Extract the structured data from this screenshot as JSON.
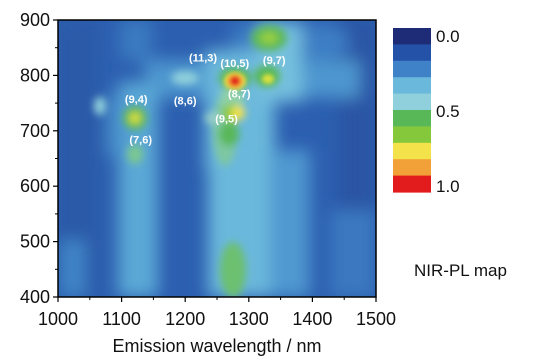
{
  "chart_data": {
    "type": "heatmap",
    "title": "",
    "xlabel": "Emission wavelength / nm",
    "ylabel": "",
    "xlim": [
      1000,
      1500
    ],
    "ylim": [
      400,
      900
    ],
    "x_ticks": [
      "1000",
      "1100",
      "1200",
      "1300",
      "1400",
      "1500"
    ],
    "y_ticks": [
      "400",
      "500",
      "600",
      "700",
      "800",
      "900"
    ],
    "colorbar": {
      "range": [
        0.0,
        1.0
      ],
      "tick_labels": [
        "0.0",
        "0.5",
        "1.0"
      ],
      "colors": [
        "#1e2c78",
        "#2452a8",
        "#3f82c8",
        "#6ab8dc",
        "#8fd0dc",
        "#58b858",
        "#86c83c",
        "#f4e24a",
        "#f2a038",
        "#e21c1c"
      ]
    },
    "peaks": [
      {
        "label": "(9,4)",
        "x": 1123,
        "y": 725,
        "intensity": 0.7
      },
      {
        "label": "(7,6)",
        "x": 1130,
        "y": 652,
        "intensity": 0.55
      },
      {
        "label": "(8,6)",
        "x": 1200,
        "y": 722,
        "intensity": 0.35
      },
      {
        "label": "(11,3)",
        "x": 1228,
        "y": 800,
        "intensity": 0.35
      },
      {
        "label": "(10,5)",
        "x": 1278,
        "y": 790,
        "intensity": 1.0
      },
      {
        "label": "(8,7)",
        "x": 1285,
        "y": 735,
        "intensity": 0.75
      },
      {
        "label": "(9,5)",
        "x": 1265,
        "y": 690,
        "intensity": 0.5
      },
      {
        "label": "(9,7)",
        "x": 1340,
        "y": 795,
        "intensity": 0.65
      }
    ]
  },
  "caption": "NIR-PL map"
}
